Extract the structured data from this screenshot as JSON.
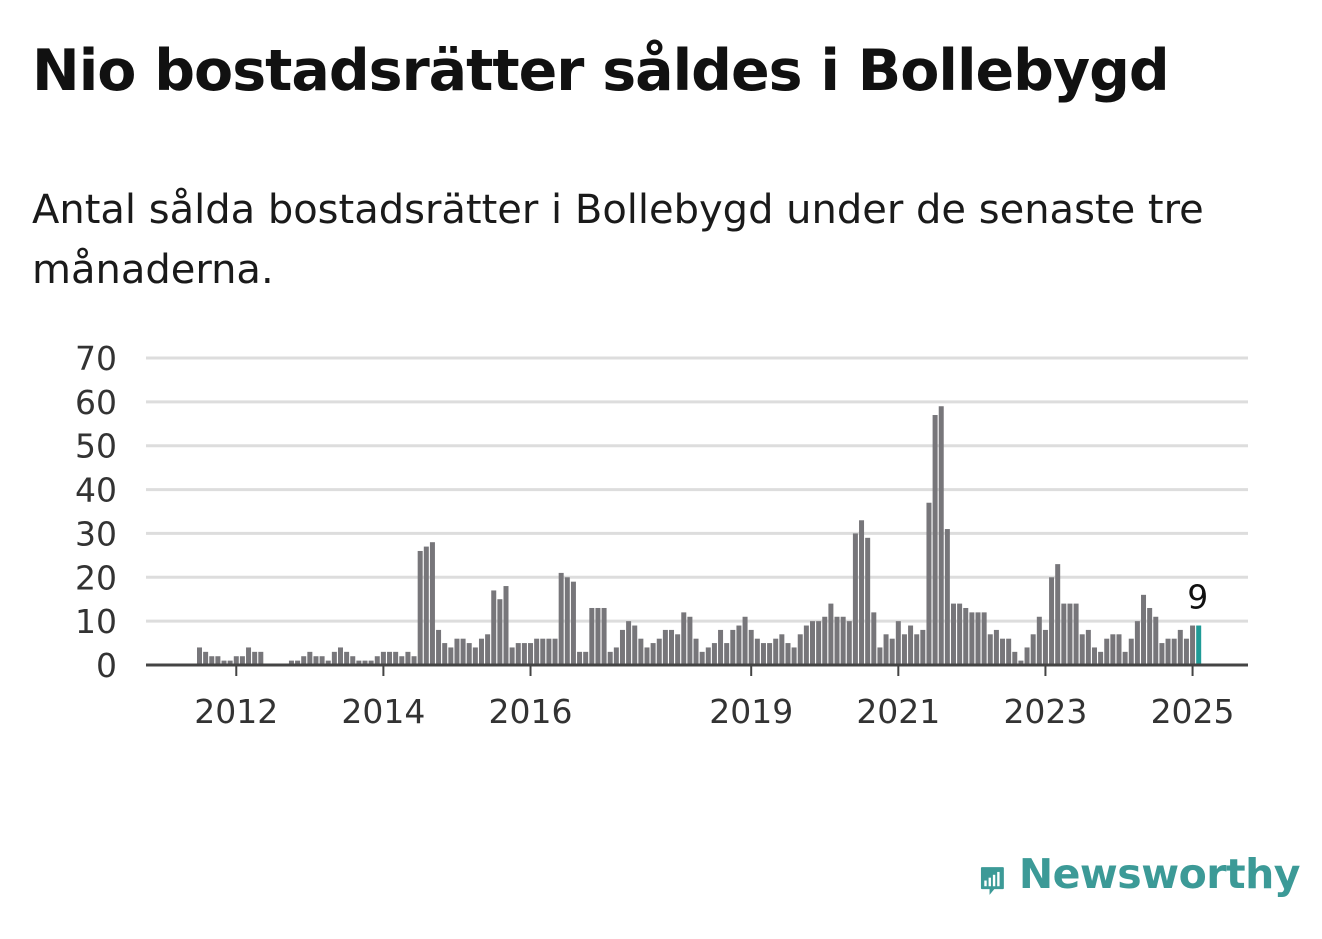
{
  "title": "Nio bostadsrätter såldes i Bollebygd",
  "subtitle": "Antal sålda bostadsrätter i Bollebygd under de senaste tre månaderna.",
  "brand": {
    "name": "Newsworthy",
    "color": "#3c9a97",
    "icon": "newsworthy-logo-icon"
  },
  "colors": {
    "bar": "#77767a",
    "highlight": "#1f9b97",
    "grid": "#dddddd",
    "axis": "#444444"
  },
  "chart_data": {
    "type": "bar",
    "ylim": [
      0,
      70
    ],
    "yticks": [
      "0",
      "10",
      "20",
      "30",
      "40",
      "50",
      "60",
      "70"
    ],
    "xticks": [
      {
        "label": "2012",
        "index": 6
      },
      {
        "label": "2014",
        "index": 30
      },
      {
        "label": "2016",
        "index": 54
      },
      {
        "label": "2019",
        "index": 90
      },
      {
        "label": "2021",
        "index": 114
      },
      {
        "label": "2023",
        "index": 138
      },
      {
        "label": "2025",
        "index": 162
      }
    ],
    "values": [
      4,
      3,
      2,
      2,
      1,
      1,
      2,
      2,
      4,
      3,
      3,
      0,
      0,
      0,
      0,
      1,
      1,
      2,
      3,
      2,
      2,
      1,
      3,
      4,
      3,
      2,
      1,
      1,
      1,
      2,
      3,
      3,
      3,
      2,
      3,
      2,
      26,
      27,
      28,
      8,
      5,
      4,
      6,
      6,
      5,
      4,
      6,
      7,
      17,
      15,
      18,
      4,
      5,
      5,
      5,
      6,
      6,
      6,
      6,
      21,
      20,
      19,
      3,
      3,
      13,
      13,
      13,
      3,
      4,
      8,
      10,
      9,
      6,
      4,
      5,
      6,
      8,
      8,
      7,
      12,
      11,
      6,
      3,
      4,
      5,
      8,
      5,
      8,
      9,
      11,
      8,
      6,
      5,
      5,
      6,
      7,
      5,
      4,
      7,
      9,
      10,
      10,
      11,
      14,
      11,
      11,
      10,
      30,
      33,
      29,
      12,
      4,
      7,
      6,
      10,
      7,
      9,
      7,
      8,
      37,
      57,
      59,
      31,
      14,
      14,
      13,
      12,
      12,
      12,
      7,
      8,
      6,
      6,
      3,
      1,
      4,
      7,
      11,
      8,
      20,
      23,
      14,
      14,
      14,
      7,
      8,
      4,
      3,
      6,
      7,
      7,
      3,
      6,
      10,
      16,
      13,
      11,
      5,
      6,
      6,
      8,
      6,
      9,
      9
    ],
    "highlight_last": 1,
    "value_label": "9"
  }
}
